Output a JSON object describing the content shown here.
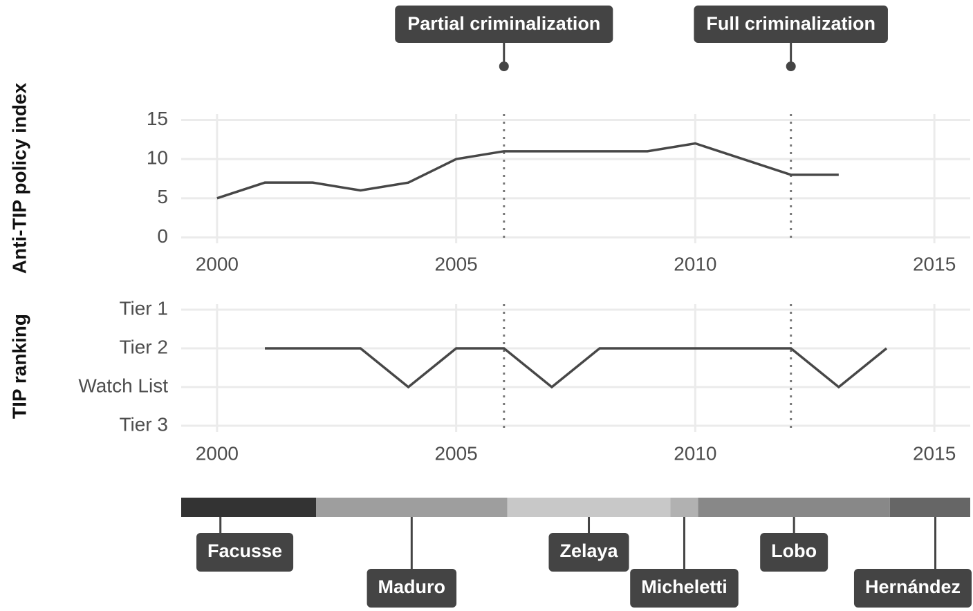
{
  "chart_data": [
    {
      "type": "line",
      "ylabel": "Anti-TIP policy index",
      "x": [
        2000,
        2001,
        2002,
        2003,
        2004,
        2005,
        2006,
        2007,
        2008,
        2009,
        2010,
        2011,
        2012,
        2013
      ],
      "values": [
        5,
        7,
        7,
        6,
        7,
        10,
        11,
        11,
        11,
        11,
        12,
        10,
        8,
        8
      ],
      "color": "#474747",
      "xlim": [
        1999.25,
        2015.75
      ],
      "xticks": [
        2000,
        2005,
        2010,
        2015
      ],
      "ylim": [
        -0.75,
        15.75
      ],
      "yticks": [
        0,
        5,
        10,
        15
      ],
      "grid": true,
      "annotations": [
        {
          "x": 2006,
          "label": "Partial criminalization"
        },
        {
          "x": 2012,
          "label": "Full criminalization"
        }
      ]
    },
    {
      "type": "categorical-line",
      "ylabel": "TIP ranking",
      "y_categories": [
        "Tier 3",
        "Watch List",
        "Tier 2",
        "Tier 1"
      ],
      "x": [
        2001,
        2002,
        2003,
        2004,
        2005,
        2006,
        2007,
        2008,
        2009,
        2010,
        2011,
        2012,
        2013,
        2014
      ],
      "values": [
        "Tier 2",
        "Tier 2",
        "Tier 2",
        "Watch List",
        "Tier 2",
        "Tier 2",
        "Watch List",
        "Tier 2",
        "Tier 2",
        "Tier 2",
        "Tier 2",
        "Tier 2",
        "Watch List",
        "Tier 2"
      ],
      "color": "#474747",
      "xlim": [
        1999.25,
        2015.75
      ],
      "xticks": [
        2000,
        2005,
        2010,
        2015
      ],
      "grid": true
    },
    {
      "type": "timeline",
      "xlim": [
        1999.25,
        2015.75
      ],
      "periods": [
        {
          "name": "Facusse",
          "start": 1998.07,
          "end": 2002.07,
          "color": "#333333"
        },
        {
          "name": "Maduro",
          "start": 2002.07,
          "end": 2006.07,
          "color": "#9e9e9e"
        },
        {
          "name": "Zelaya",
          "start": 2006.07,
          "end": 2009.48,
          "color": "#c8c8c8"
        },
        {
          "name": "Micheletti",
          "start": 2009.48,
          "end": 2010.06,
          "color": "#b1b1b1"
        },
        {
          "name": "Lobo",
          "start": 2010.06,
          "end": 2014.07,
          "color": "#888888"
        },
        {
          "name": "Hernández",
          "start": 2014.07,
          "end": 2015.97,
          "color": "#666666"
        }
      ]
    }
  ]
}
